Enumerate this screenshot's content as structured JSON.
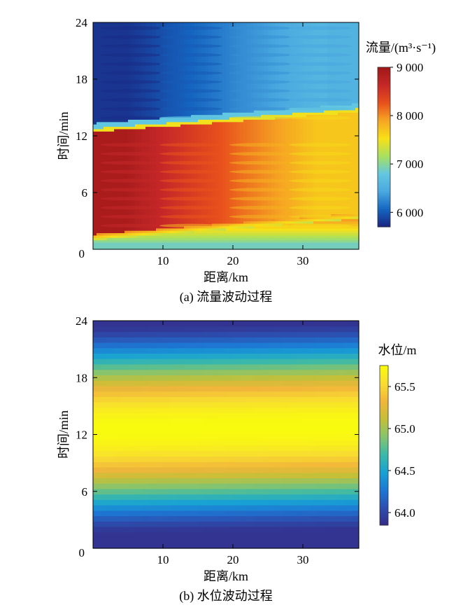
{
  "chart_data": [
    {
      "type": "heatmap",
      "panel_label": "(a) 流量波动过程",
      "xlabel": "距离/km",
      "ylabel": "时间/min",
      "xlim": [
        0,
        38
      ],
      "ylim": [
        0,
        24
      ],
      "x_ticks": [
        "10",
        "20",
        "30"
      ],
      "x_origin_label": "0",
      "y_ticks": [
        "6",
        "12",
        "18",
        "24"
      ],
      "colorbar": {
        "title": "流量/(m³·s⁻¹)",
        "range": [
          5700,
          9000
        ],
        "ticks": [
          "6 000",
          "7 000",
          "8 000",
          "9 000"
        ],
        "tick_values": [
          6000,
          7000,
          8000,
          9000
        ],
        "colors": [
          "#1a237e",
          "#1565c0",
          "#4aa8e0",
          "#62c7e0",
          "#a8e060",
          "#f7e017",
          "#f6a623",
          "#e8501c",
          "#c62828",
          "#a01818"
        ]
      },
      "regions": [
        {
          "name": "initial",
          "t": [
            0,
            1.5
          ],
          "q_near": 6800,
          "q_far": 6800
        },
        {
          "name": "high-flow",
          "t": [
            1.5,
            12.5
          ],
          "q_near": 8900,
          "q_far": 7700,
          "attenuation_km": [
            5,
            32
          ]
        },
        {
          "name": "low-flow",
          "t": [
            12.5,
            24
          ],
          "q_near": 5800,
          "q_far": 6600,
          "attenuation_km": [
            5,
            32
          ]
        }
      ]
    },
    {
      "type": "heatmap",
      "panel_label": "(b) 水位波动过程",
      "xlabel": "距离/km",
      "ylabel": "时间/min",
      "xlim": [
        0,
        38
      ],
      "ylim": [
        0,
        24
      ],
      "x_ticks": [
        "10",
        "20",
        "30"
      ],
      "x_origin_label": "0",
      "y_ticks": [
        "6",
        "12",
        "18",
        "24"
      ],
      "colorbar": {
        "title": "水位/m",
        "range": [
          63.85,
          65.75
        ],
        "ticks": [
          "64.0",
          "64.5",
          "65.0",
          "65.5"
        ],
        "tick_values": [
          64.0,
          64.5,
          65.0,
          65.5
        ],
        "colors": [
          "#352a87",
          "#2c4fb0",
          "#1d78d4",
          "#18a2d4",
          "#3cb9a8",
          "#86c46e",
          "#c4c038",
          "#f2b53a",
          "#f8dd30",
          "#f9fb0e"
        ]
      },
      "profile": {
        "t_peak": 12.5,
        "level_min": 63.9,
        "level_max": 65.75,
        "half_width_min": 11
      }
    }
  ]
}
